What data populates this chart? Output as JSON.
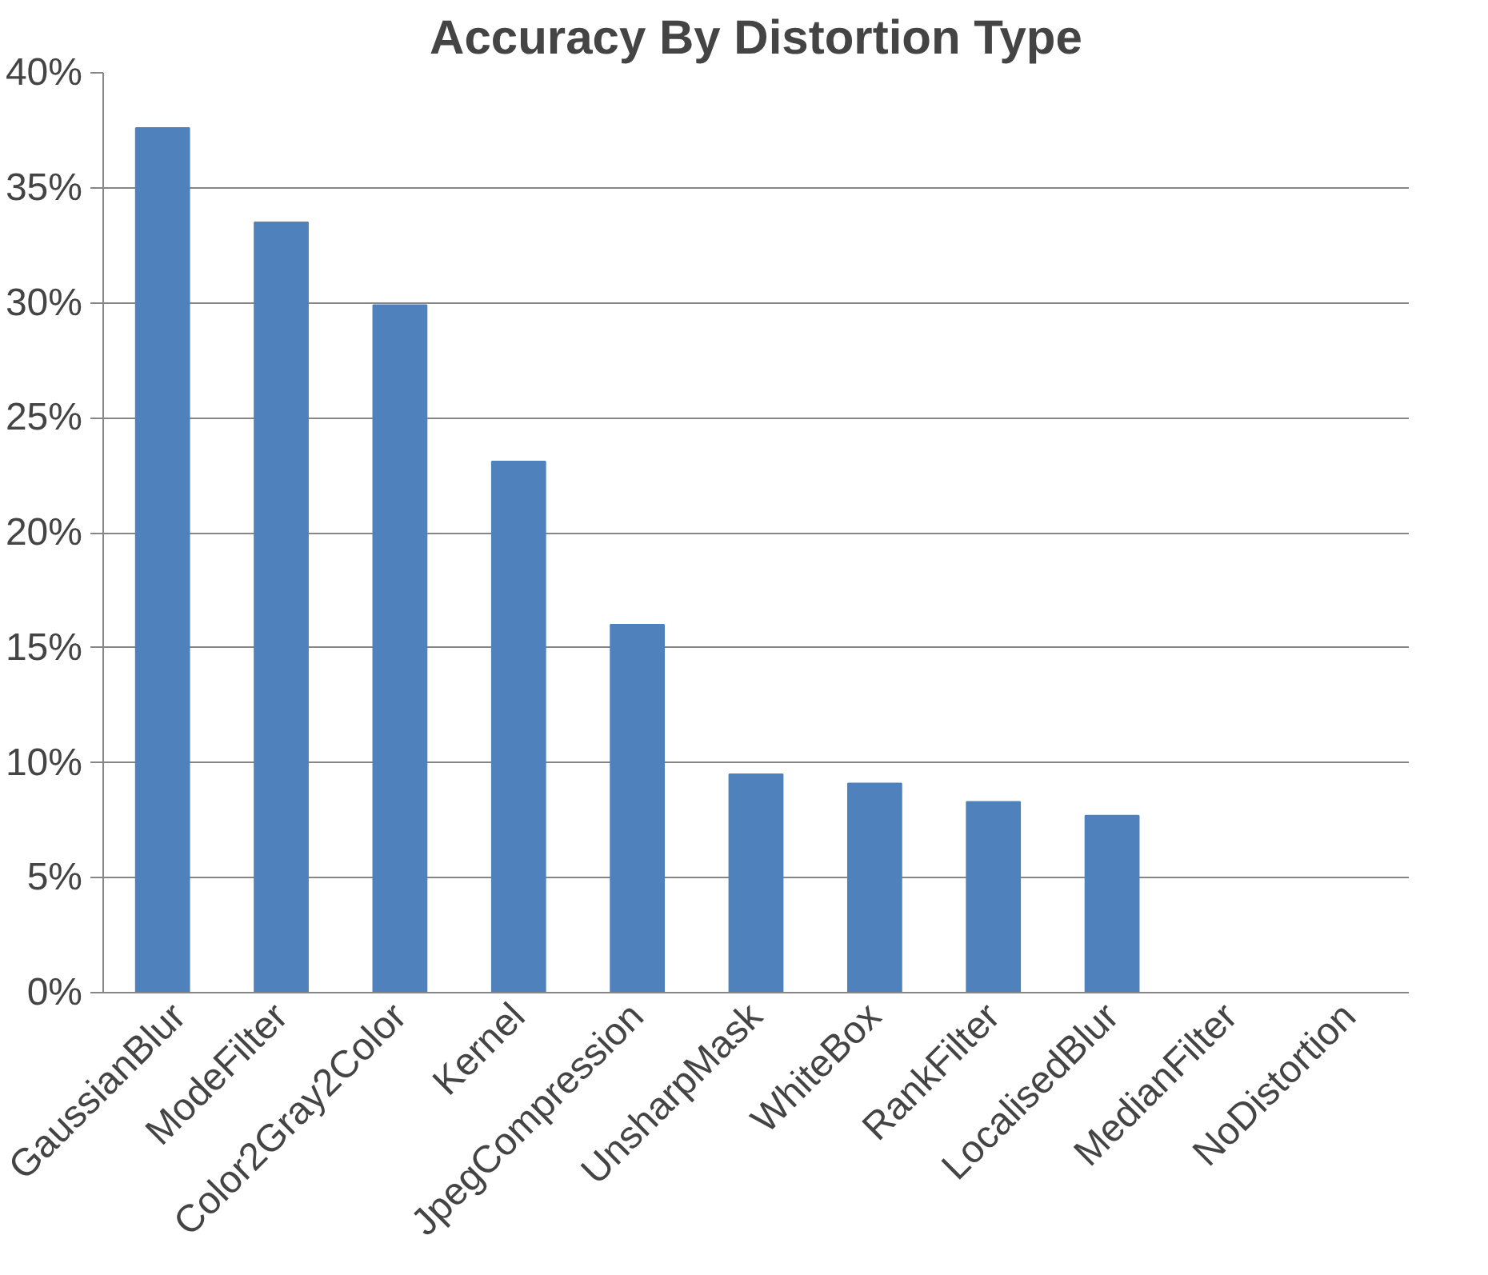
{
  "chart_data": {
    "type": "bar",
    "title": "Accuracy By Distortion Type",
    "categories": [
      "GaussianBlur",
      "ModeFilter",
      "Color2Gray2Color",
      "Kernel",
      "JpegCompression",
      "UnsharpMask",
      "WhiteBox",
      "RankFilter",
      "LocalisedBlur",
      "MedianFilter",
      "NoDistortion"
    ],
    "values": [
      37.6,
      33.5,
      29.9,
      23.1,
      16.0,
      9.5,
      9.1,
      8.3,
      7.7,
      0,
      0
    ],
    "color": "#4f81bd",
    "ylim": [
      0,
      40
    ],
    "yticks": [
      {
        "value": 0,
        "label": "0%"
      },
      {
        "value": 5,
        "label": "5%"
      },
      {
        "value": 10,
        "label": "10%"
      },
      {
        "value": 15,
        "label": "15%"
      },
      {
        "value": 20,
        "label": "20%"
      },
      {
        "value": 25,
        "label": "25%"
      },
      {
        "value": 30,
        "label": "30%"
      },
      {
        "value": 35,
        "label": "35%"
      },
      {
        "value": 40,
        "label": "40%"
      }
    ],
    "grid": "y"
  }
}
